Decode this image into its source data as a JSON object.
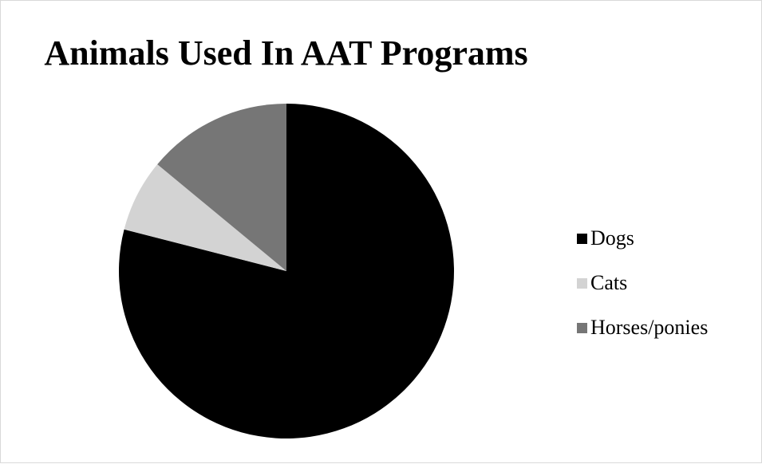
{
  "chart_data": {
    "type": "pie",
    "title": "Animals Used In AAT Programs",
    "categories": [
      "Dogs",
      "Cats",
      "Horses/ponies"
    ],
    "values": [
      79,
      7,
      14
    ],
    "colors": [
      "#000000",
      "#d3d3d3",
      "#767676"
    ],
    "legend_position": "right",
    "start_angle_deg": 0,
    "direction": "clockwise"
  }
}
